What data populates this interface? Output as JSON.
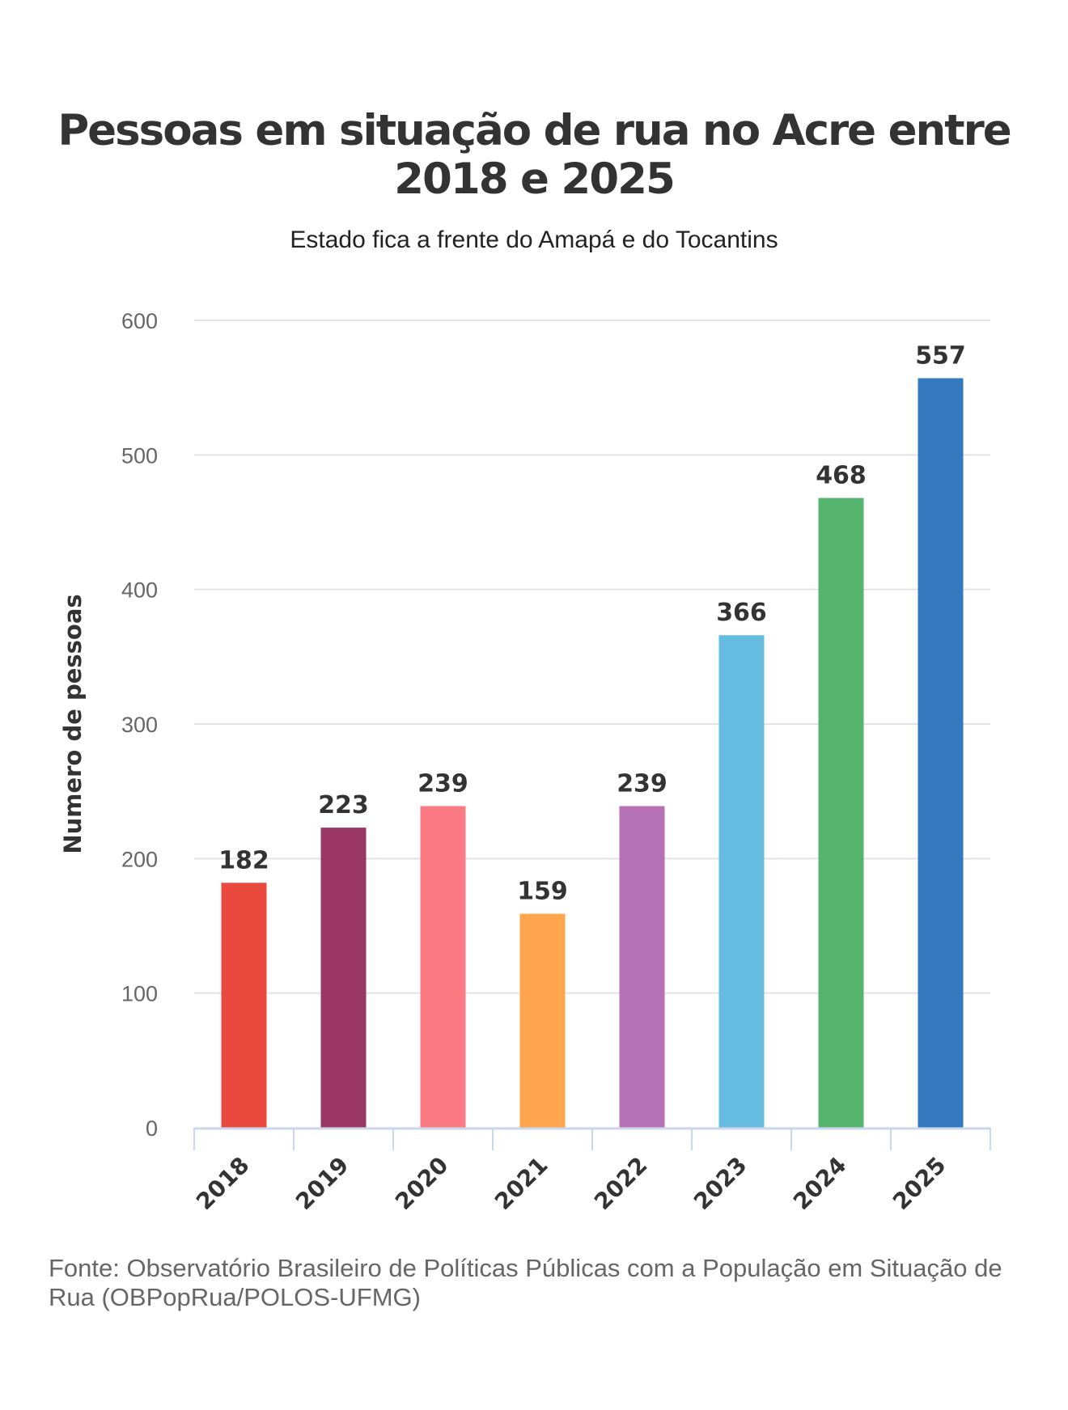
{
  "chart_data": {
    "type": "bar",
    "title": "Pessoas em situação de rua no Acre entre 2018 e 2025",
    "subtitle": "Estado fica a frente do Amapá e do Tocantins",
    "xlabel": "",
    "ylabel": "Numero de pessoas",
    "ylim": [
      0,
      600
    ],
    "yticks": [
      0,
      100,
      200,
      300,
      400,
      500,
      600
    ],
    "grid": true,
    "categories": [
      "2018",
      "2019",
      "2020",
      "2021",
      "2022",
      "2023",
      "2024",
      "2025"
    ],
    "values": [
      182,
      223,
      239,
      159,
      239,
      366,
      468,
      557
    ],
    "colors": [
      "#EA4A3E",
      "#9B3764",
      "#FA7B83",
      "#FFA54E",
      "#B772B5",
      "#66BCE0",
      "#55B56F",
      "#3479BE"
    ],
    "source": "Fonte: Observatório Brasileiro de Políticas Públicas com a População em Situação de Rua (OBPopRua/POLOS-UFMG)"
  }
}
